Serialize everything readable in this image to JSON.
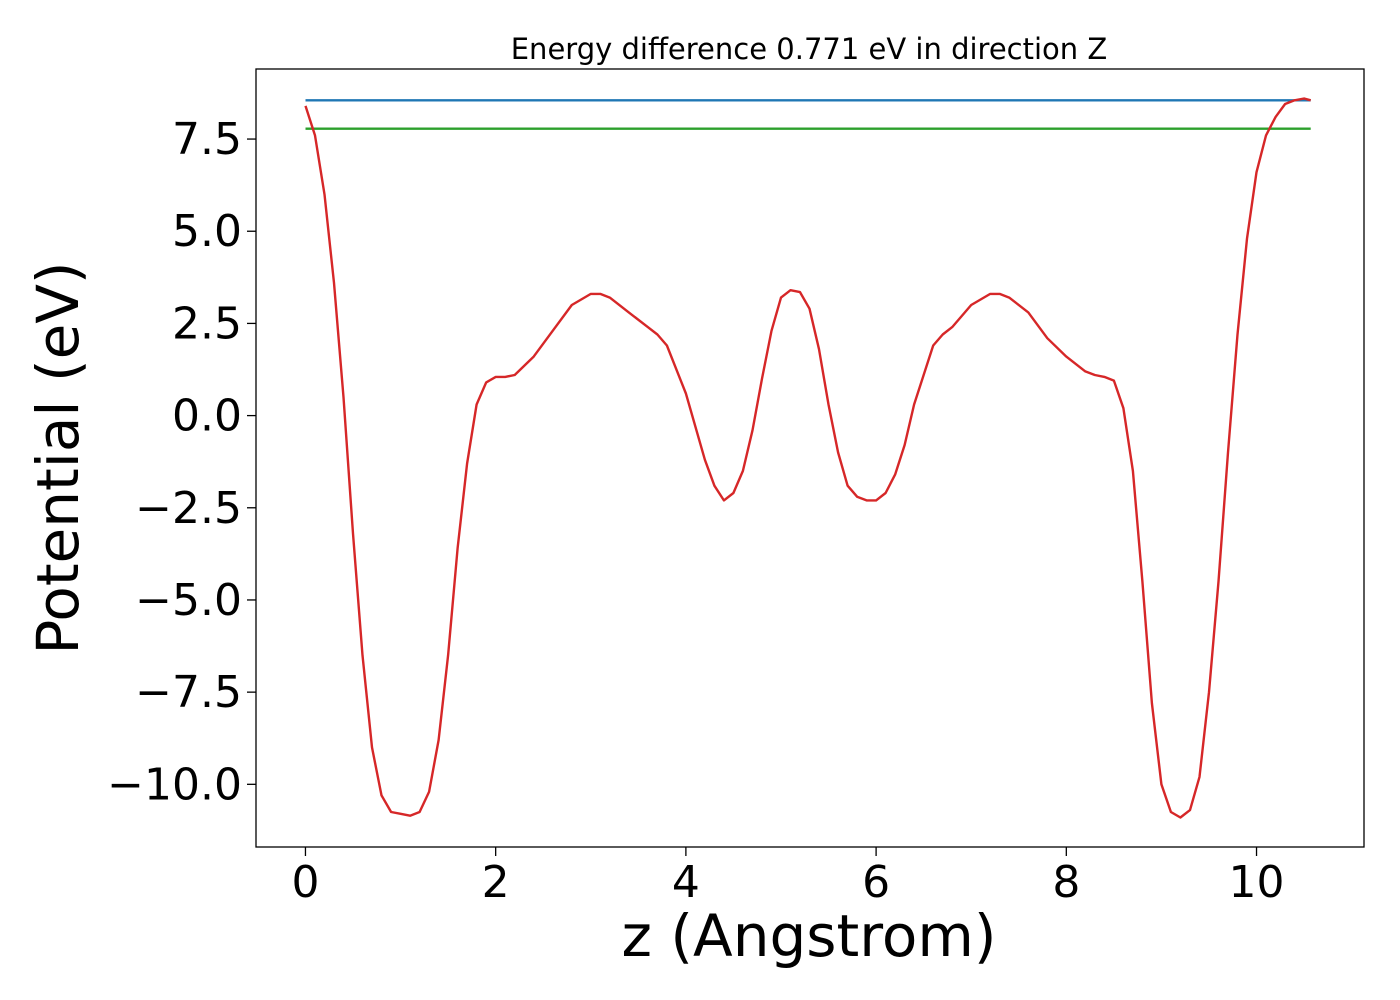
{
  "chart_data": {
    "type": "line",
    "title": "Energy difference 0.771 eV in direction Z",
    "xlabel": "z (Angstrom)",
    "ylabel": "Potential (eV)",
    "xlim": [
      -0.52,
      11.13
    ],
    "ylim": [
      -11.7,
      9.4
    ],
    "x_ticks": [
      0,
      2,
      4,
      6,
      8,
      10
    ],
    "x_tick_labels": [
      "0",
      "2",
      "4",
      "6",
      "8",
      "10"
    ],
    "y_ticks": [
      7.5,
      5.0,
      2.5,
      0.0,
      -2.5,
      -5.0,
      -7.5,
      -10.0
    ],
    "y_tick_labels": [
      "7.5",
      "5.0",
      "2.5",
      "0.0",
      "−2.5",
      "−5.0",
      "−7.5",
      "−10.0"
    ],
    "grid": false,
    "legend": "none",
    "series": [
      {
        "color": "#d62728",
        "x": [
          0,
          0.1,
          0.2,
          0.3,
          0.4,
          0.5,
          0.6,
          0.7,
          0.8,
          0.9,
          1.0,
          1.1,
          1.2,
          1.3,
          1.4,
          1.5,
          1.6,
          1.7,
          1.8,
          1.9,
          2.0,
          2.1,
          2.2,
          2.4,
          2.6,
          2.8,
          3.0,
          3.1,
          3.2,
          3.4,
          3.6,
          3.7,
          3.8,
          4.0,
          4.2,
          4.3,
          4.4,
          4.5,
          4.6,
          4.7,
          4.8,
          4.9,
          5.0,
          5.1,
          5.2,
          5.3,
          5.4,
          5.5,
          5.6,
          5.7,
          5.8,
          5.9,
          6.0,
          6.1,
          6.2,
          6.3,
          6.4,
          6.6,
          6.7,
          6.8,
          7.0,
          7.2,
          7.3,
          7.4,
          7.6,
          7.8,
          8.0,
          8.2,
          8.3,
          8.4,
          8.5,
          8.6,
          8.7,
          8.8,
          8.9,
          9.0,
          9.1,
          9.2,
          9.3,
          9.4,
          9.5,
          9.6,
          9.7,
          9.8,
          9.9,
          10.0,
          10.1,
          10.2,
          10.3,
          10.4,
          10.5,
          10.57
        ],
        "y": [
          8.4,
          7.6,
          6.0,
          3.6,
          0.5,
          -3.2,
          -6.5,
          -9.0,
          -10.3,
          -10.75,
          -10.8,
          -10.85,
          -10.75,
          -10.2,
          -8.8,
          -6.5,
          -3.6,
          -1.3,
          0.3,
          0.9,
          1.05,
          1.05,
          1.1,
          1.6,
          2.3,
          3.0,
          3.3,
          3.3,
          3.2,
          2.8,
          2.4,
          2.2,
          1.9,
          0.6,
          -1.2,
          -1.9,
          -2.3,
          -2.1,
          -1.5,
          -0.4,
          1.0,
          2.3,
          3.2,
          3.4,
          3.35,
          2.9,
          1.8,
          0.3,
          -1.0,
          -1.9,
          -2.2,
          -2.3,
          -2.3,
          -2.1,
          -1.6,
          -0.8,
          0.3,
          1.9,
          2.2,
          2.4,
          3.0,
          3.3,
          3.3,
          3.2,
          2.8,
          2.1,
          1.6,
          1.2,
          1.1,
          1.05,
          0.95,
          0.2,
          -1.5,
          -4.5,
          -7.8,
          -10.0,
          -10.75,
          -10.9,
          -10.7,
          -9.8,
          -7.5,
          -4.5,
          -1.0,
          2.2,
          4.8,
          6.6,
          7.6,
          8.1,
          8.45,
          8.55,
          8.6,
          8.55
        ]
      },
      {
        "color": "#1f77b4",
        "x": [
          0,
          10.57
        ],
        "y": [
          8.55,
          8.55
        ]
      },
      {
        "color": "#2ca02c",
        "x": [
          0,
          10.57
        ],
        "y": [
          7.78,
          7.78
        ]
      }
    ]
  }
}
